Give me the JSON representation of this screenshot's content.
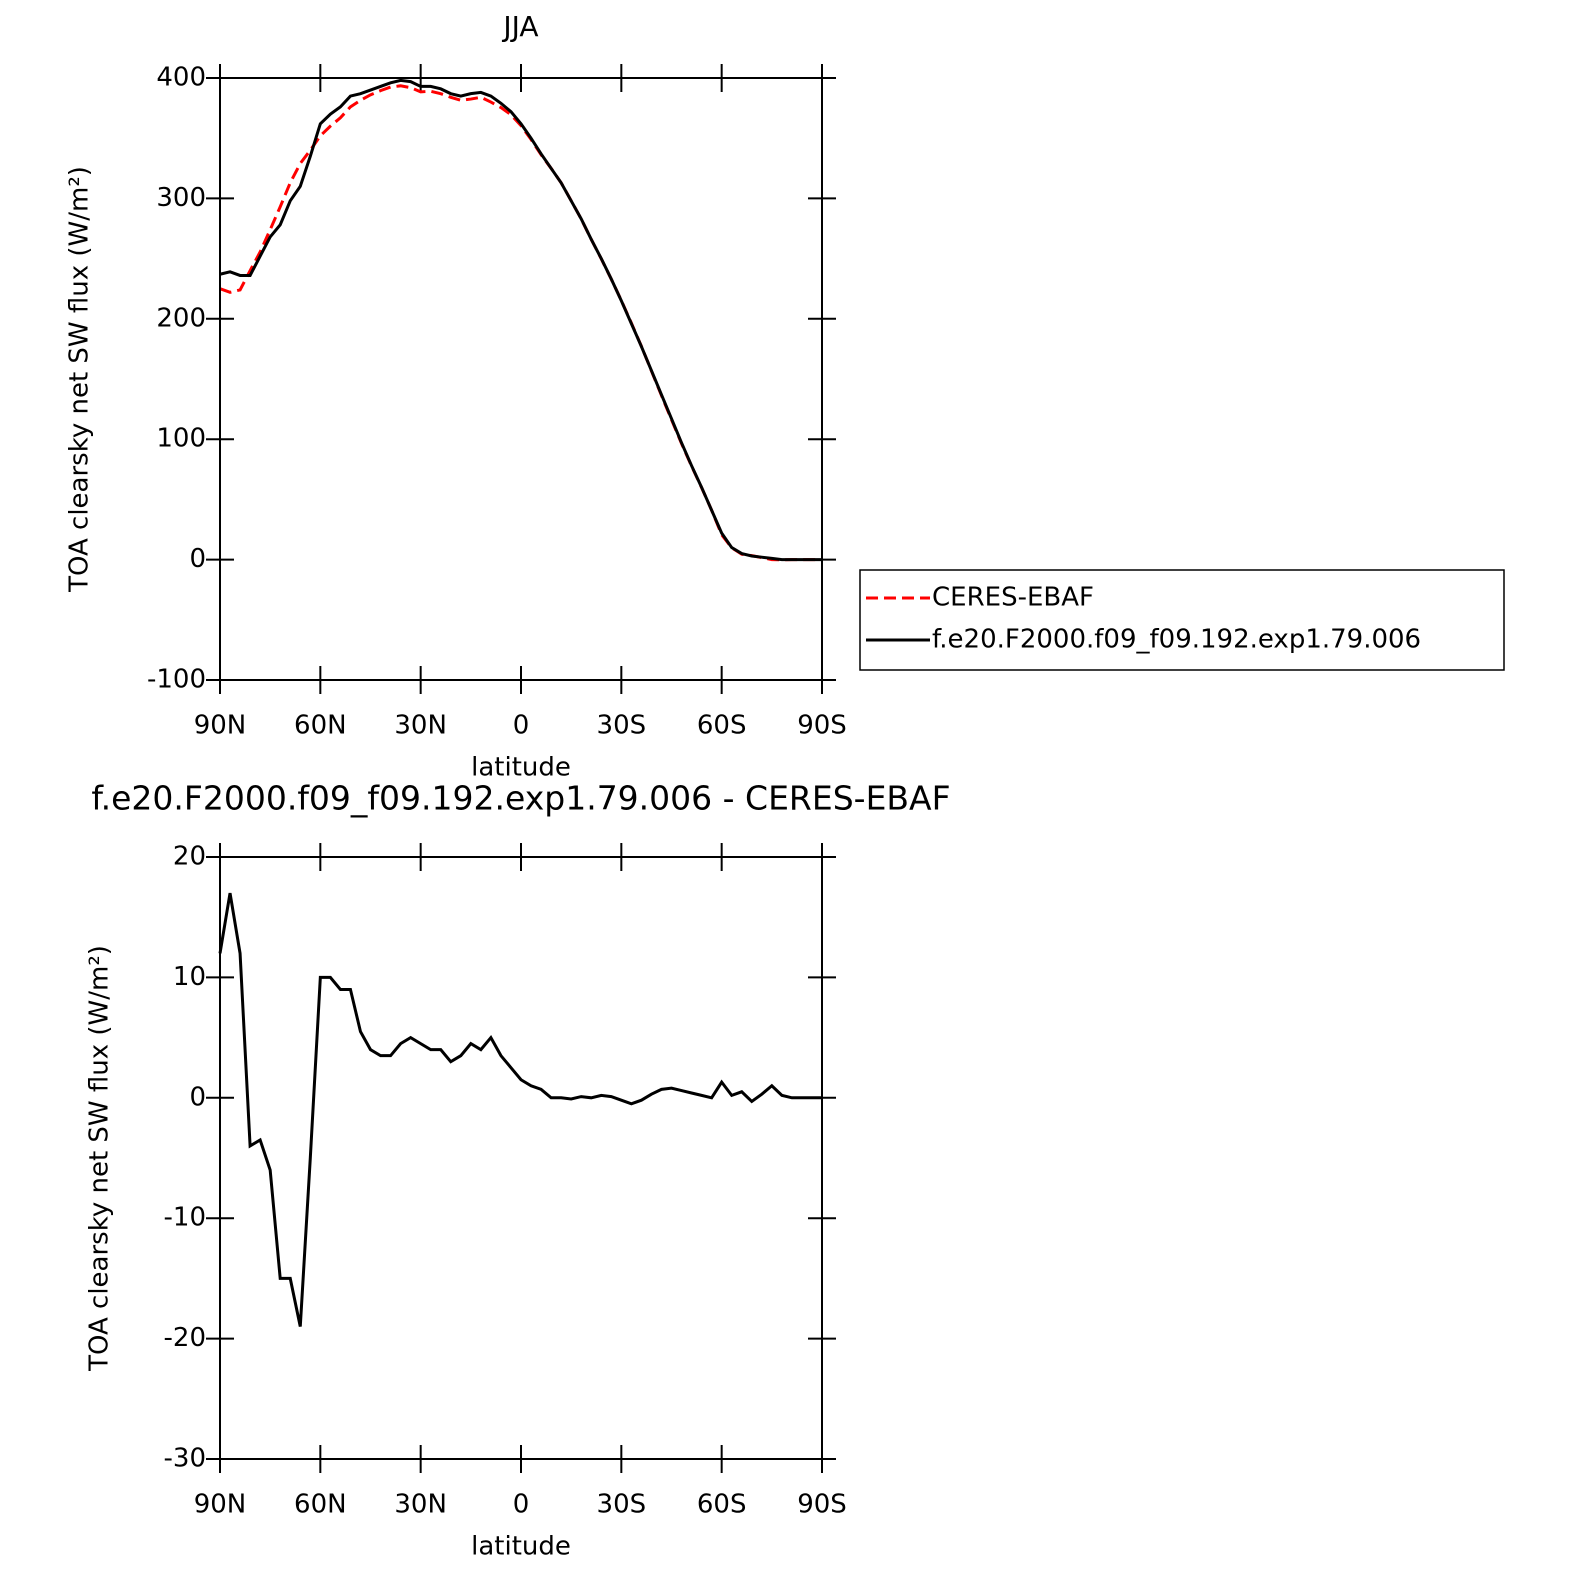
{
  "chart_data": [
    {
      "type": "line",
      "title": "JJA",
      "xlabel": "latitude",
      "ylabel": "TOA clearsky net SW flux (W/m²)",
      "x": [
        90,
        87,
        84,
        81,
        78,
        75,
        72,
        69,
        66,
        63,
        60,
        57,
        54,
        51,
        48,
        45,
        42,
        39,
        36,
        33,
        30,
        27,
        24,
        21,
        18,
        15,
        12,
        9,
        6,
        3,
        0,
        -3,
        -6,
        -9,
        -12,
        -15,
        -18,
        -21,
        -24,
        -27,
        -30,
        -33,
        -36,
        -39,
        -42,
        -45,
        -48,
        -51,
        -54,
        -57,
        -60,
        -63,
        -66,
        -69,
        -72,
        -75,
        -78,
        -81,
        -84,
        -87,
        -90
      ],
      "xlim": [
        90,
        -90
      ],
      "xticks": [
        {
          "value": 90,
          "label": "90N"
        },
        {
          "value": 60,
          "label": "60N"
        },
        {
          "value": 30,
          "label": "30N"
        },
        0,
        {
          "value": -30,
          "label": "30S"
        },
        {
          "value": -60,
          "label": "60S"
        },
        {
          "value": -90,
          "label": "90S"
        }
      ],
      "ylim": [
        -100,
        400
      ],
      "yticks": [
        -100,
        0,
        100,
        200,
        300,
        400
      ],
      "legend": "outside right",
      "series": [
        {
          "name": "CERES-EBAF",
          "color": "#ff0000",
          "dash": "dashed",
          "values": [
            225,
            222,
            224,
            240,
            255.5,
            274,
            293,
            313,
            329,
            340,
            352,
            360,
            367,
            376,
            381.5,
            386,
            389.5,
            392.5,
            393.5,
            392,
            388.5,
            389,
            387,
            384,
            381.5,
            382.5,
            384,
            380,
            375.5,
            369.5,
            360.5,
            349,
            336.3,
            325,
            313,
            298.1,
            282.9,
            266,
            249.8,
            232.9,
            215.2,
            196.5,
            177.2,
            156.7,
            136.3,
            116.2,
            96.4,
            77.6,
            59.8,
            41,
            20.7,
            9.8,
            4.5,
            3.3,
            1.7,
            0,
            -0.2,
            0,
            0,
            0,
            0
          ]
        },
        {
          "name": "f.e20.F2000.f09_f09.192.exp1.79.006",
          "color": "#000000",
          "dash": "solid",
          "values": [
            237,
            239,
            236,
            236,
            252,
            268,
            278,
            298,
            310,
            335,
            362,
            370,
            376,
            385,
            387,
            390,
            393,
            396,
            398,
            397,
            393,
            393,
            391,
            387,
            385,
            387,
            388,
            385,
            379,
            372,
            362,
            350,
            337,
            325,
            313,
            298,
            283,
            266,
            250,
            233,
            215,
            196,
            177,
            157,
            137,
            117,
            97,
            78,
            60,
            41,
            22,
            10,
            5,
            3,
            2,
            1,
            0,
            0,
            0,
            0,
            0
          ]
        }
      ]
    },
    {
      "type": "line",
      "title": "f.e20.F2000.f09_f09.192.exp1.79.006 - CERES-EBAF",
      "xlabel": "latitude",
      "ylabel": "TOA clearsky net SW flux (W/m²)",
      "x": [
        90,
        87,
        84,
        81,
        78,
        75,
        72,
        69,
        66,
        63,
        60,
        57,
        54,
        51,
        48,
        45,
        42,
        39,
        36,
        33,
        30,
        27,
        24,
        21,
        18,
        15,
        12,
        9,
        6,
        3,
        0,
        -3,
        -6,
        -9,
        -12,
        -15,
        -18,
        -21,
        -24,
        -27,
        -30,
        -33,
        -36,
        -39,
        -42,
        -45,
        -48,
        -51,
        -54,
        -57,
        -60,
        -63,
        -66,
        -69,
        -72,
        -75,
        -78,
        -81,
        -84,
        -87,
        -90
      ],
      "xlim": [
        90,
        -90
      ],
      "xticks": [
        {
          "value": 90,
          "label": "90N"
        },
        {
          "value": 60,
          "label": "60N"
        },
        {
          "value": 30,
          "label": "30N"
        },
        0,
        {
          "value": -30,
          "label": "30S"
        },
        {
          "value": -60,
          "label": "60S"
        },
        {
          "value": -90,
          "label": "90S"
        }
      ],
      "ylim": [
        -30,
        20
      ],
      "yticks": [
        -30,
        -20,
        -10,
        0,
        10,
        20
      ],
      "series": [
        {
          "color": "#000000",
          "dash": "solid",
          "values": [
            12,
            17,
            12,
            -4,
            -3.5,
            -6,
            -15,
            -15,
            -19,
            -5,
            10,
            10,
            9,
            9,
            5.5,
            4,
            3.5,
            3.5,
            4.5,
            5,
            4.5,
            4,
            4,
            3,
            3.5,
            4.5,
            4,
            5,
            3.5,
            2.5,
            1.5,
            1,
            0.7,
            0,
            0,
            -0.1,
            0.1,
            0,
            0.2,
            0.1,
            -0.2,
            -0.5,
            -0.2,
            0.3,
            0.7,
            0.8,
            0.6,
            0.4,
            0.2,
            0,
            1.3,
            0.2,
            0.5,
            -0.3,
            0.3,
            1,
            0.2,
            0,
            0,
            0,
            0
          ]
        }
      ]
    }
  ]
}
